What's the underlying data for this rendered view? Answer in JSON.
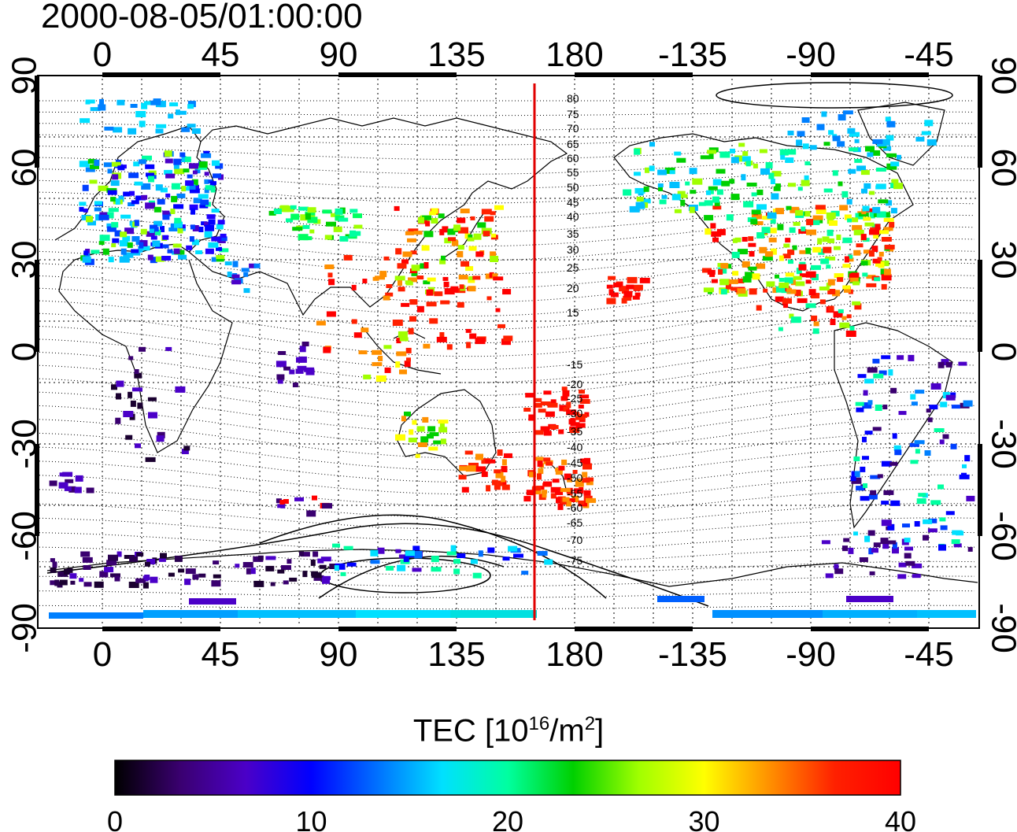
{
  "title": "2000-08-05/01:00:00",
  "map": {
    "lon_labels": [
      "0",
      "45",
      "90",
      "135",
      "180",
      "-135",
      "-90",
      "-45"
    ],
    "lat_labels": [
      "90",
      "60",
      "30",
      "0",
      "-30",
      "-60",
      "-90"
    ],
    "contour_labels_north": [
      "80",
      "75",
      "70",
      "65",
      "60",
      "55",
      "50",
      "45",
      "40",
      "35",
      "30",
      "25",
      "20",
      "15"
    ],
    "contour_labels_south": [
      "-15",
      "-20",
      "-25",
      "-30",
      "-35",
      "-40",
      "-45",
      "-50",
      "-55",
      "-60",
      "-65",
      "-70",
      "-75"
    ],
    "marker_line_color": "#e00000"
  },
  "colorbar": {
    "title_main": "TEC  [10",
    "title_sup1": "16",
    "title_mid": "/m",
    "title_sup2": "2",
    "title_end": "]",
    "tick_labels": [
      "0",
      "10",
      "20",
      "30",
      "40"
    ],
    "min": 0,
    "max": 40,
    "colors": [
      "#000000",
      "#3a0070",
      "#4b00c8",
      "#0000ff",
      "#0070ff",
      "#00e0ff",
      "#00ffa0",
      "#00d000",
      "#a0ff00",
      "#ffff00",
      "#ff9000",
      "#ff2000",
      "#ff0000"
    ]
  }
}
